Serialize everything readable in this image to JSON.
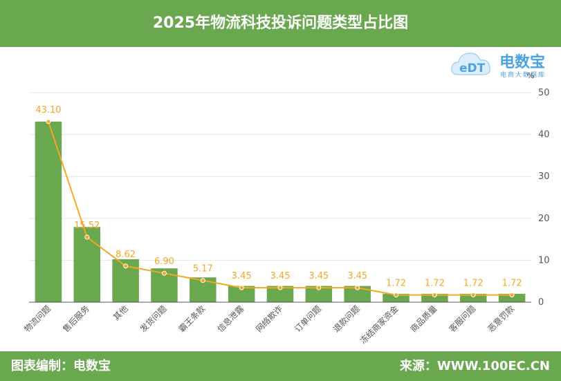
{
  "header": {
    "title": "2025年物流科技投诉问题类型占比图"
  },
  "logo": {
    "brand": "电数宝",
    "sub": "电商大数据库",
    "icon": "cloud-edt-logo",
    "mark": "eDT"
  },
  "footer": {
    "left": "图表编制：电数宝",
    "right": "来源：WWW.100EC.CN"
  },
  "colors": {
    "green": "#6aa84f",
    "bar": "#6aa84f",
    "line": "#f5a623",
    "label": "#f5a623",
    "grid": "#e6e6e6"
  },
  "chart_data": {
    "type": "bar",
    "title": "2025年物流科技投诉问题类型占比图",
    "ylabel": "%",
    "ylim": [
      0,
      50
    ],
    "yticks": [
      "0",
      "10",
      "20",
      "30",
      "40",
      "50"
    ],
    "categories": [
      "物流问题",
      "售后服务",
      "其他",
      "发货问题",
      "霸王条款",
      "信息泄露",
      "网络欺诈",
      "订单问题",
      "退款问题",
      "冻结商家资金",
      "商品质量",
      "客服问题",
      "恶意罚款"
    ],
    "values": [
      43.1,
      17.95,
      10.26,
      8.06,
      5.91,
      3.87,
      3.87,
      3.87,
      3.87,
      2.0,
      2.0,
      2.0,
      2.0
    ],
    "line_values": [
      43.1,
      15.52,
      8.62,
      6.9,
      5.17,
      3.45,
      3.45,
      3.45,
      3.45,
      1.72,
      1.72,
      1.72,
      1.72
    ],
    "data_labels": [
      "43.10",
      "15.52",
      "8.62",
      "6.90",
      "5.17",
      "3.45",
      "3.45",
      "3.45",
      "3.45",
      "1.72",
      "1.72",
      "1.72",
      "1.72"
    ],
    "bar_clip_max": 50
  }
}
